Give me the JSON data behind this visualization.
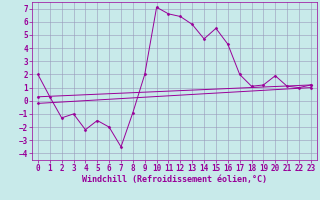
{
  "xlabel": "Windchill (Refroidissement éolien,°C)",
  "bg_color": "#c8eaea",
  "line_color": "#990099",
  "grid_color": "#9999bb",
  "xlim": [
    -0.5,
    23.5
  ],
  "ylim": [
    -4.5,
    7.5
  ],
  "xticks": [
    0,
    1,
    2,
    3,
    4,
    5,
    6,
    7,
    8,
    9,
    10,
    11,
    12,
    13,
    14,
    15,
    16,
    17,
    18,
    19,
    20,
    21,
    22,
    23
  ],
  "yticks": [
    -4,
    -3,
    -2,
    -1,
    0,
    1,
    2,
    3,
    4,
    5,
    6,
    7
  ],
  "series1_x": [
    0,
    1,
    2,
    3,
    4,
    5,
    6,
    7,
    8,
    9,
    10,
    11,
    12,
    13,
    14,
    15,
    16,
    17,
    18,
    19,
    20,
    21,
    22,
    23
  ],
  "series1_y": [
    2.0,
    0.3,
    -1.3,
    -1.0,
    -2.2,
    -1.5,
    -2.0,
    -3.5,
    -0.9,
    2.0,
    7.1,
    6.6,
    6.4,
    5.8,
    4.7,
    5.5,
    4.3,
    2.0,
    1.1,
    1.2,
    1.9,
    1.1,
    1.0,
    1.2
  ],
  "series2_x": [
    0,
    23
  ],
  "series2_y": [
    0.3,
    1.2
  ],
  "series3_x": [
    0,
    23
  ],
  "series3_y": [
    -0.2,
    1.0
  ],
  "fontsize_label": 6,
  "fontsize_tick": 5.5,
  "marker": "D",
  "markersize": 1.5,
  "linewidth": 0.7
}
